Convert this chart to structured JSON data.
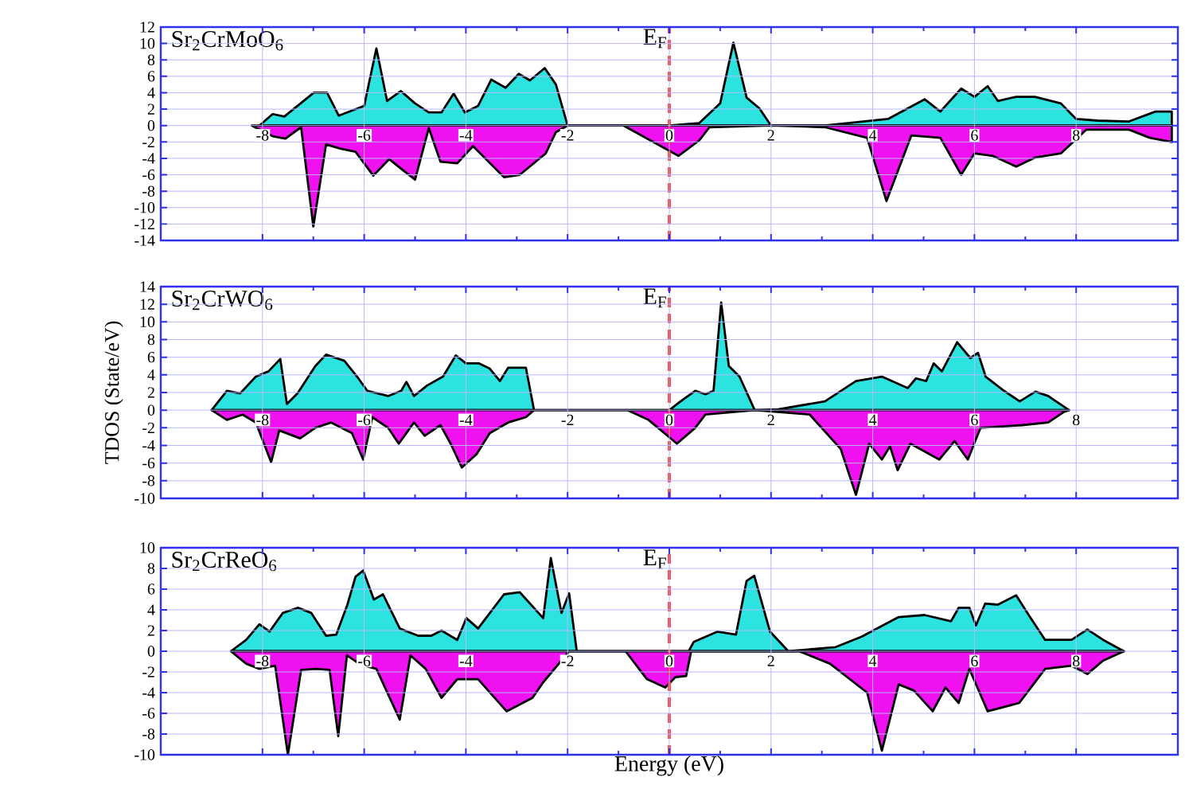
{
  "chart_data": [
    {
      "type": "area",
      "title": "Sr$_{2}$CrMoO$_{6}$",
      "xlim": [
        -10,
        10
      ],
      "xticks": [
        -8,
        -6,
        -4,
        -2,
        0,
        2,
        4,
        6,
        8
      ],
      "ylim": [
        -14,
        12
      ],
      "yticks": [
        -14,
        -12,
        -10,
        -8,
        -6,
        -4,
        -2,
        0,
        2,
        4,
        6,
        8,
        10,
        12
      ],
      "grid": true,
      "ref_lines": [
        {
          "axis": "x",
          "value": 0,
          "label": "E$_{F}$",
          "color": "#ff2020",
          "line_style": "dashed"
        }
      ],
      "series": [
        {
          "color": "#2de3e0",
          "x": [
            -8.06,
            -7.8,
            -7.57,
            -6.99,
            -6.73,
            -6.5,
            -6.0,
            -5.76,
            -5.55,
            -5.28,
            -5.0,
            -4.73,
            -4.48,
            -4.24,
            -4.02,
            -3.76,
            -3.5,
            -3.22,
            -2.96,
            -2.74,
            -2.45,
            -2.23,
            -2.0,
            0,
            0.59,
            1.0,
            1.26,
            1.52,
            1.77,
            2.0,
            3.06,
            4.3,
            5.02,
            5.33,
            5.74,
            6.0,
            6.26,
            6.46,
            6.82,
            7.19,
            7.7,
            8.0,
            8.42,
            9.04,
            9.56,
            9.88
          ],
          "values": [
            0,
            1.4,
            1.1,
            4.0,
            4.0,
            1.2,
            2.4,
            9.4,
            3.0,
            4.2,
            2.7,
            1.6,
            1.6,
            3.9,
            1.6,
            2.4,
            5.6,
            4.6,
            6.3,
            5.5,
            7.0,
            5.0,
            0,
            0,
            0.3,
            2.7,
            10.1,
            3.4,
            2.1,
            0,
            0,
            0.8,
            3.2,
            1.7,
            4.5,
            3.5,
            4.8,
            3.0,
            3.5,
            3.5,
            2.7,
            0.8,
            0.6,
            0.5,
            1.7,
            1.7
          ]
        },
        {
          "color": "#f011f0",
          "x": [
            -8.21,
            -7.8,
            -7.55,
            -7.24,
            -7.0,
            -6.75,
            -6.47,
            -6.17,
            -5.82,
            -5.51,
            -5.0,
            -4.73,
            -4.5,
            -4.17,
            -3.86,
            -3.25,
            -2.94,
            -2.43,
            -2.23,
            -2.0,
            -0.9,
            0.18,
            0.59,
            0.79,
            2.0,
            3.06,
            3.89,
            4.27,
            4.76,
            5.33,
            5.74,
            6.0,
            6.36,
            6.82,
            7.19,
            7.7,
            8.2,
            9.04,
            9.45,
            9.88
          ],
          "values": [
            0,
            -1.3,
            -1.6,
            -0.2,
            -12.3,
            -2.3,
            -2.8,
            -3.2,
            -6.1,
            -4.1,
            -6.6,
            -0.3,
            -4.4,
            -4.6,
            -2.5,
            -6.3,
            -6.0,
            -3.4,
            -0.8,
            0,
            0,
            -3.7,
            -1.8,
            -0.2,
            0,
            -0.2,
            -1.5,
            -9.2,
            -1.2,
            -1.5,
            -6.0,
            -3.4,
            -3.7,
            -5.0,
            -3.9,
            -3.4,
            -0.5,
            -0.5,
            -1.5,
            -2.0
          ]
        }
      ]
    },
    {
      "type": "area",
      "title": "Sr$_{2}$CrWO$_{6}$",
      "ylabel": "TDOS (State/eV)",
      "xlim": [
        -10,
        10
      ],
      "xticks": [
        -8,
        -6,
        -4,
        -2,
        0,
        2,
        4,
        6,
        8
      ],
      "ylim": [
        -10,
        14
      ],
      "yticks": [
        -10,
        -8,
        -6,
        -4,
        -2,
        0,
        2,
        4,
        6,
        8,
        10,
        12,
        14
      ],
      "grid": true,
      "ref_lines": [
        {
          "axis": "x",
          "value": 0,
          "label": "E$_{F}$",
          "color": "#ff2020",
          "line_style": "dashed"
        }
      ],
      "series": [
        {
          "color": "#2de3e0",
          "x": [
            -9.0,
            -8.7,
            -8.44,
            -8.13,
            -7.88,
            -7.65,
            -7.52,
            -7.31,
            -6.96,
            -6.75,
            -6.39,
            -6.14,
            -5.94,
            -5.53,
            -5.27,
            -5.17,
            -5.02,
            -4.76,
            -4.45,
            -4.2,
            -4.0,
            -3.74,
            -3.53,
            -3.33,
            -3.17,
            -2.82,
            -2.66,
            0,
            0.2,
            0.51,
            0.71,
            0.87,
            1.02,
            1.17,
            1.38,
            1.68,
            2.14,
            3.06,
            3.67,
            4.18,
            4.69,
            4.85,
            5.05,
            5.2,
            5.36,
            5.66,
            5.92,
            6.07,
            6.22,
            6.58,
            6.89,
            7.2,
            7.45,
            7.86
          ],
          "values": [
            0,
            2.2,
            1.9,
            3.8,
            4.4,
            5.8,
            0.7,
            1.9,
            5.0,
            6.3,
            5.6,
            3.8,
            2.2,
            1.6,
            2.2,
            3.2,
            1.6,
            2.8,
            3.8,
            6.2,
            5.3,
            5.3,
            4.7,
            3.3,
            4.8,
            4.8,
            0,
            0,
            0.9,
            2.2,
            1.8,
            2.2,
            12.2,
            5.0,
            3.8,
            0,
            0.1,
            1.0,
            3.3,
            3.8,
            2.5,
            3.6,
            3.3,
            5.3,
            4.4,
            7.7,
            5.9,
            6.5,
            3.8,
            2.2,
            1.0,
            2.1,
            1.6,
            0
          ]
        },
        {
          "color": "#f011f0",
          "x": [
            -9.0,
            -8.7,
            -8.39,
            -8.13,
            -7.83,
            -7.67,
            -7.26,
            -6.96,
            -6.65,
            -6.24,
            -6.02,
            -5.84,
            -5.53,
            -5.32,
            -5.02,
            -4.81,
            -4.5,
            -4.3,
            -4.08,
            -3.79,
            -3.53,
            -3.17,
            -2.82,
            -2.66,
            -0.82,
            -0.41,
            0.15,
            0.51,
            0.71,
            1.68,
            2.76,
            3.37,
            3.67,
            3.93,
            4.18,
            4.34,
            4.49,
            4.74,
            5.31,
            5.61,
            5.87,
            6.12,
            6.94,
            7.45,
            7.76,
            7.86
          ],
          "values": [
            0,
            -1.1,
            -0.5,
            -1.4,
            -5.9,
            -2.3,
            -3.2,
            -2.0,
            -1.4,
            -2.6,
            -5.6,
            -0.8,
            -2.0,
            -3.8,
            -1.4,
            -2.9,
            -1.7,
            -3.8,
            -6.5,
            -5.0,
            -2.6,
            -1.4,
            -0.8,
            0,
            0,
            -1.1,
            -3.8,
            -2.0,
            -0.5,
            0,
            -0.5,
            -4.4,
            -9.6,
            -3.8,
            -5.6,
            -4.1,
            -6.8,
            -3.8,
            -5.6,
            -3.5,
            -5.6,
            -2.0,
            -1.7,
            -1.4,
            -0.2,
            0
          ]
        }
      ]
    },
    {
      "type": "area",
      "title": "Sr$_{2}$CrReO$_{6}$",
      "xlabel": "Energy (eV)",
      "xlim": [
        -10,
        10
      ],
      "xticks": [
        -8,
        -6,
        -4,
        -2,
        0,
        2,
        4,
        6,
        8
      ],
      "ylim": [
        -10,
        10
      ],
      "yticks": [
        -10,
        -8,
        -6,
        -4,
        -2,
        0,
        2,
        4,
        6,
        8,
        10
      ],
      "grid": true,
      "ref_lines": [
        {
          "axis": "x",
          "value": 0,
          "label": "E$_{F}$",
          "color": "#ff2020",
          "line_style": "dashed"
        }
      ],
      "series": [
        {
          "color": "#2de3e0",
          "x": [
            -8.62,
            -8.32,
            -8.06,
            -7.86,
            -7.6,
            -7.3,
            -7.04,
            -6.75,
            -6.55,
            -6.33,
            -6.17,
            -6.02,
            -5.81,
            -5.63,
            -5.3,
            -4.94,
            -4.68,
            -4.48,
            -4.17,
            -3.99,
            -3.76,
            -3.25,
            -2.94,
            -2.48,
            -2.33,
            -2.12,
            -1.97,
            -1.82,
            0.38,
            0.48,
            0.95,
            1.31,
            1.52,
            1.67,
            1.98,
            2.34,
            3.27,
            3.78,
            4.51,
            5.02,
            5.54,
            5.69,
            5.9,
            6.03,
            6.21,
            6.46,
            6.82,
            7.08,
            7.39,
            7.91,
            8.22,
            8.53,
            8.94
          ],
          "values": [
            0,
            1.1,
            2.6,
            1.9,
            3.7,
            4.2,
            3.7,
            1.5,
            1.6,
            4.5,
            7.2,
            7.8,
            5.0,
            5.5,
            2.2,
            1.5,
            1.5,
            2.0,
            1.1,
            3.2,
            2.2,
            5.5,
            5.7,
            3.2,
            9.0,
            3.7,
            5.6,
            0,
            0,
            0.9,
            1.9,
            1.6,
            6.8,
            7.3,
            1.9,
            0,
            0.4,
            1.4,
            3.3,
            3.5,
            2.9,
            4.2,
            4.2,
            2.5,
            4.6,
            4.5,
            5.4,
            3.4,
            1.1,
            1.1,
            2.1,
            1.1,
            0
          ]
        },
        {
          "color": "#f011f0",
          "x": [
            -8.62,
            -8.32,
            -8.06,
            -7.75,
            -7.5,
            -7.24,
            -6.94,
            -6.68,
            -6.51,
            -6.34,
            -6.07,
            -5.76,
            -5.3,
            -5.09,
            -4.79,
            -4.48,
            -4.17,
            -3.76,
            -3.2,
            -2.69,
            -2.48,
            -2.12,
            -1.97,
            -0.86,
            -0.44,
            -0.08,
            0.12,
            0.33,
            0.43,
            2.55,
            3.16,
            3.89,
            4.18,
            4.51,
            4.81,
            5.18,
            5.43,
            5.69,
            5.9,
            6.26,
            6.88,
            7.39,
            7.91,
            8.22,
            8.53,
            8.94
          ],
          "values": [
            0,
            -1.2,
            -1.7,
            -1.4,
            -10.0,
            -1.8,
            -1.7,
            -1.8,
            -8.2,
            -0.4,
            -1.3,
            -1.7,
            -6.6,
            -0.4,
            -1.7,
            -4.5,
            -2.7,
            -2.7,
            -5.8,
            -4.5,
            -3.0,
            -0.9,
            0,
            0,
            -2.7,
            -3.5,
            -2.5,
            -2.4,
            0,
            0,
            -1.2,
            -4.0,
            -9.6,
            -3.2,
            -3.8,
            -5.8,
            -3.5,
            -5.0,
            -1.7,
            -5.8,
            -5.0,
            -1.7,
            -1.4,
            -2.2,
            -0.9,
            0
          ]
        }
      ]
    }
  ]
}
